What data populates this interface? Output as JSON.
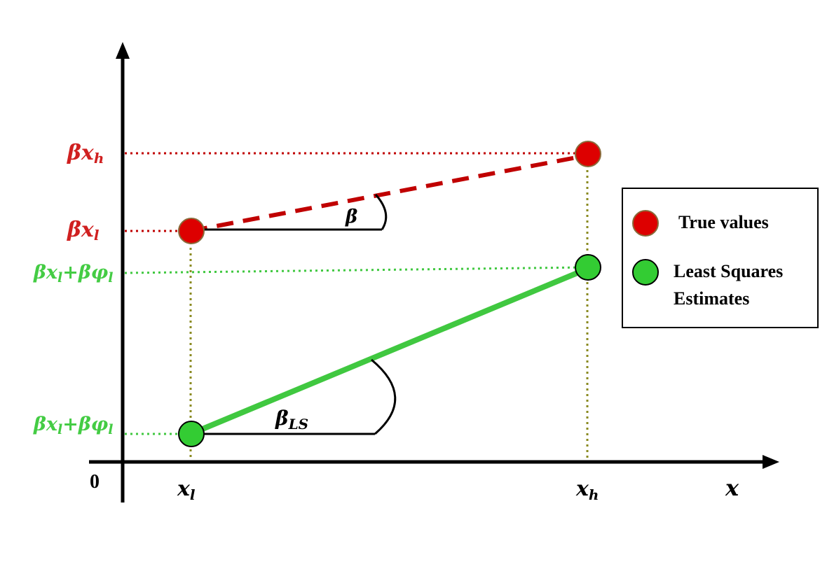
{
  "colors": {
    "true_red": "#c00000",
    "true_red_fill": "#dd0000",
    "point_outline": "#8a6a3a",
    "estimate_green": "#40c840",
    "estimate_fill": "#33cc33",
    "guide_olive": "#8a8a20",
    "label_red": "#d02020",
    "label_green": "#44cc44",
    "axis": "#000000"
  },
  "axes": {
    "origin_label": "0",
    "x_label": "x"
  },
  "x_ticks": {
    "low": {
      "base": "x",
      "sub": "l"
    },
    "high": {
      "base": "x",
      "sub": "h"
    }
  },
  "y_labels": {
    "beta_x_h": {
      "pre": "βx",
      "sub": "h"
    },
    "beta_x_l": {
      "pre": "βx",
      "sub": "l"
    },
    "estimate_high": {
      "a": "βx",
      "a_sub": "l",
      "b": "+βφ",
      "b_sub": "l"
    },
    "estimate_low": {
      "a": "βx",
      "a_sub": "l",
      "b": "+βφ",
      "b_sub": "l"
    }
  },
  "angles": {
    "true_slope": {
      "base": "β",
      "sub": ""
    },
    "ls_slope": {
      "base": "β",
      "sub": "LS"
    }
  },
  "legend": {
    "true_values": "True values",
    "ls_line1": "Least Squares",
    "ls_line2": "Estimates"
  }
}
